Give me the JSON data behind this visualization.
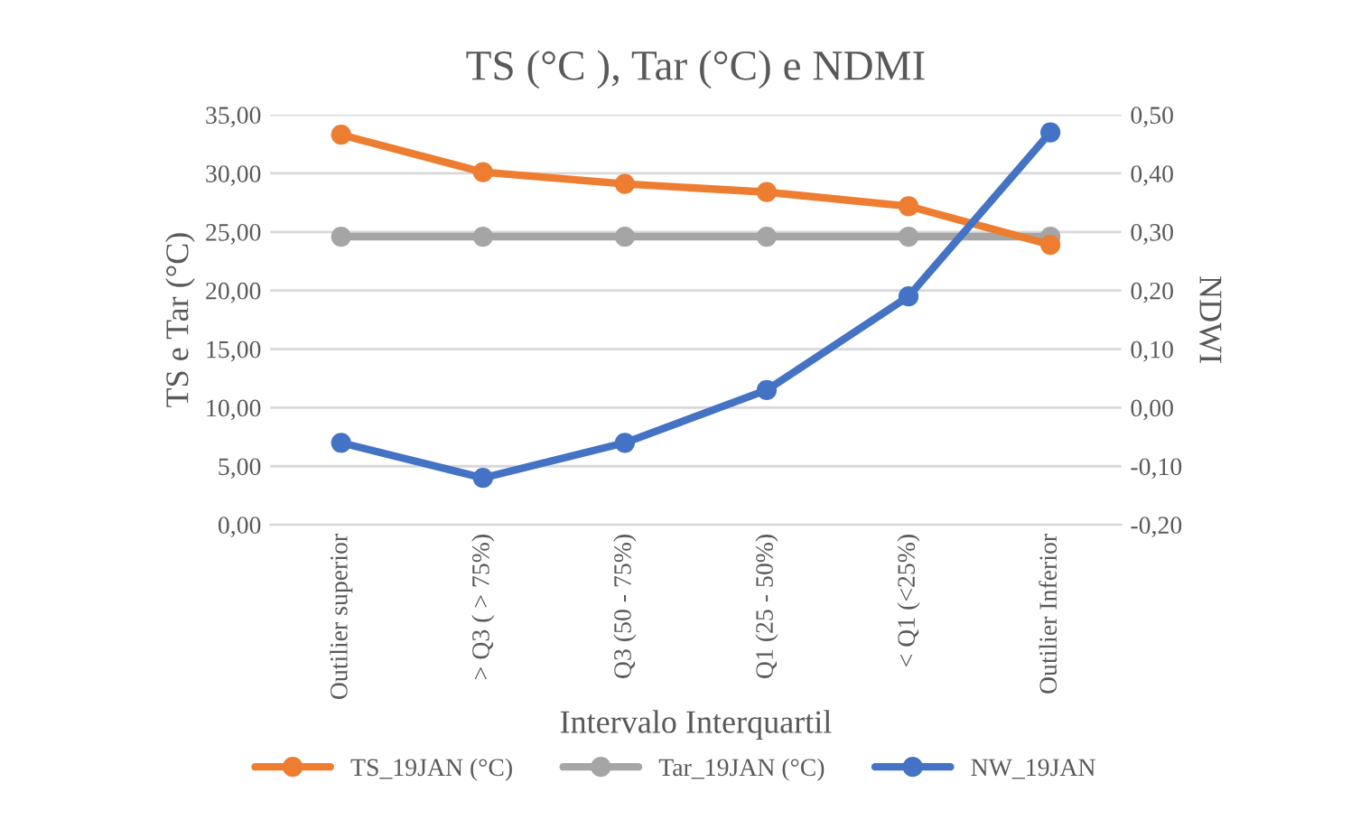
{
  "chart_data": {
    "type": "line",
    "title": "TS (°C ), Tar (°C) e NDMI",
    "xlabel": "Intervalo Interquartil",
    "ylabel": "TS e Tar (°C)",
    "y2label": "NDWI",
    "categories": [
      "Outilier superior",
      "> Q3 ( > 75%)",
      "Q3 (50 - 75%)",
      "Q1 (25 - 50%)",
      "< Q1 (<25%)",
      "Outilier Inferior"
    ],
    "series": [
      {
        "name": "TS_19JAN (°C)",
        "color": "#ed7d31",
        "values": [
          33.3,
          30.1,
          29.1,
          28.4,
          27.2,
          23.9
        ]
      },
      {
        "name": "Tar_19JAN (°C)",
        "color": "#a5a5a5",
        "values": [
          24.6,
          24.6,
          24.6,
          24.6,
          24.6,
          24.6
        ]
      },
      {
        "name": "NW_19JAN",
        "color": "#4472c4",
        "axis": "y2",
        "values": [
          -0.06,
          -0.12,
          -0.06,
          0.03,
          0.19,
          0.47
        ]
      }
    ],
    "ylim": [
      0,
      35
    ],
    "yticks": [
      {
        "value": 0,
        "label": "0,00"
      },
      {
        "value": 5,
        "label": "5,00"
      },
      {
        "value": 10,
        "label": "10,00"
      },
      {
        "value": 15,
        "label": "15,00"
      },
      {
        "value": 20,
        "label": "20,00"
      },
      {
        "value": 25,
        "label": "25,00"
      },
      {
        "value": 30,
        "label": "30,00"
      },
      {
        "value": 35,
        "label": "35,00"
      }
    ],
    "y2lim": [
      -0.2,
      0.5
    ],
    "y2ticks": [
      {
        "value": -0.2,
        "label": "-0,20"
      },
      {
        "value": -0.1,
        "label": "-0,10"
      },
      {
        "value": 0,
        "label": "0,00"
      },
      {
        "value": 0.1,
        "label": "0,10"
      },
      {
        "value": 0.2,
        "label": "0,20"
      },
      {
        "value": 0.3,
        "label": "0,30"
      },
      {
        "value": 0.4,
        "label": "0,40"
      },
      {
        "value": 0.5,
        "label": "0,50"
      }
    ],
    "grid": "y",
    "legend": "bottom",
    "marker": "circle",
    "line_style": "solid"
  }
}
